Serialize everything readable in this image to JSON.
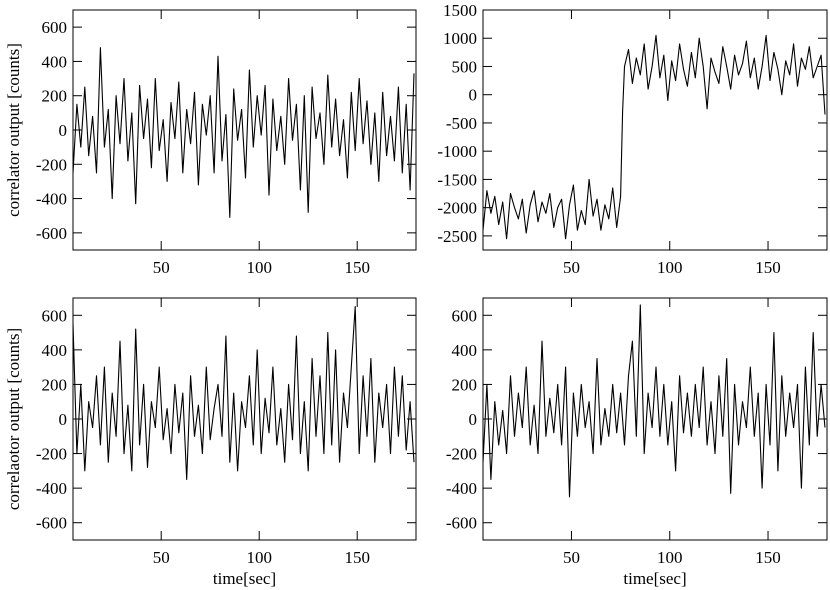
{
  "chart_data": [
    {
      "id": "top-left",
      "type": "line",
      "title": "",
      "xlabel": "",
      "ylabel": "correlator output [counts]",
      "xlim": [
        5,
        180
      ],
      "ylim": [
        -700,
        700
      ],
      "xticks": [
        50,
        100,
        150
      ],
      "yticks": [
        -600,
        -400,
        -200,
        0,
        200,
        400,
        600
      ],
      "grid": false,
      "series": [
        {
          "x": [
            5,
            7,
            9,
            11,
            13,
            15,
            17,
            19,
            21,
            23,
            25,
            27,
            29,
            31,
            33,
            35,
            37,
            39,
            41,
            43,
            45,
            47,
            49,
            51,
            53,
            55,
            57,
            59,
            61,
            63,
            65,
            67,
            69,
            71,
            73,
            75,
            77,
            79,
            81,
            83,
            85,
            87,
            89,
            91,
            93,
            95,
            97,
            99,
            101,
            103,
            105,
            107,
            109,
            111,
            113,
            115,
            117,
            119,
            121,
            123,
            125,
            127,
            129,
            131,
            133,
            135,
            137,
            139,
            141,
            143,
            145,
            147,
            149,
            151,
            153,
            155,
            157,
            159,
            161,
            163,
            165,
            167,
            169,
            171,
            173,
            175,
            177,
            179
          ],
          "values": [
            -250,
            150,
            -100,
            250,
            -150,
            80,
            -250,
            480,
            -100,
            120,
            -400,
            200,
            -80,
            300,
            -180,
            100,
            -430,
            260,
            -50,
            180,
            -220,
            300,
            -120,
            60,
            -300,
            160,
            -50,
            280,
            -250,
            120,
            -80,
            220,
            -320,
            150,
            -30,
            200,
            -250,
            430,
            -180,
            90,
            -510,
            240,
            -60,
            120,
            -280,
            350,
            -100,
            200,
            -30,
            260,
            -380,
            180,
            -120,
            80,
            -200,
            300,
            -60,
            150,
            -350,
            200,
            -480,
            250,
            -50,
            100,
            -200,
            320,
            -100,
            180,
            -150,
            60,
            -280,
            220,
            -120,
            300,
            -80,
            170,
            -200,
            100,
            -300,
            220,
            -150,
            80,
            -180,
            250,
            -250,
            150,
            -350,
            330
          ]
        }
      ]
    },
    {
      "id": "top-right",
      "type": "line",
      "title": "",
      "xlabel": "",
      "ylabel": "",
      "xlim": [
        5,
        180
      ],
      "ylim": [
        -2750,
        1500
      ],
      "xticks": [
        50,
        100,
        150
      ],
      "yticks": [
        -2500,
        -2000,
        -1500,
        -1000,
        -500,
        0,
        500,
        1000,
        1500
      ],
      "grid": false,
      "series": [
        {
          "x": [
            5,
            7,
            9,
            11,
            13,
            15,
            17,
            19,
            21,
            23,
            25,
            27,
            29,
            31,
            33,
            35,
            37,
            39,
            41,
            43,
            45,
            47,
            49,
            51,
            53,
            55,
            57,
            59,
            61,
            63,
            65,
            67,
            69,
            71,
            73,
            75,
            76,
            77,
            79,
            81,
            83,
            85,
            87,
            89,
            91,
            93,
            95,
            97,
            99,
            101,
            103,
            105,
            107,
            109,
            111,
            113,
            115,
            117,
            119,
            121,
            123,
            125,
            127,
            129,
            131,
            133,
            135,
            137,
            139,
            141,
            143,
            145,
            147,
            149,
            151,
            153,
            155,
            157,
            159,
            161,
            163,
            165,
            167,
            169,
            171,
            173,
            175,
            177,
            179
          ],
          "values": [
            -2400,
            -1700,
            -2100,
            -1800,
            -2300,
            -1900,
            -2550,
            -1750,
            -2000,
            -2200,
            -1850,
            -2450,
            -1950,
            -1700,
            -2250,
            -1900,
            -2100,
            -1750,
            -2350,
            -2000,
            -1850,
            -2550,
            -1950,
            -1600,
            -2400,
            -2050,
            -2300,
            -1500,
            -2150,
            -1850,
            -2400,
            -1950,
            -2200,
            -1650,
            -2350,
            -1800,
            -300,
            500,
            800,
            200,
            650,
            350,
            900,
            100,
            500,
            1050,
            300,
            700,
            -100,
            600,
            250,
            900,
            450,
            150,
            750,
            300,
            1000,
            500,
            -250,
            650,
            400,
            200,
            850,
            500,
            100,
            700,
            350,
            550,
            950,
            300,
            650,
            100,
            500,
            1050,
            250,
            750,
            450,
            0,
            600,
            350,
            900,
            150,
            650,
            450,
            850,
            300,
            500,
            700,
            -350
          ]
        }
      ]
    },
    {
      "id": "bottom-left",
      "type": "line",
      "title": "",
      "xlabel": "time[sec]",
      "ylabel": "correlaotor output [counts]",
      "xlim": [
        5,
        180
      ],
      "ylim": [
        -700,
        700
      ],
      "xticks": [
        50,
        100,
        150
      ],
      "yticks": [
        -600,
        -400,
        -200,
        0,
        200,
        400,
        600
      ],
      "grid": false,
      "series": [
        {
          "x": [
            5,
            7,
            9,
            11,
            13,
            15,
            17,
            19,
            21,
            23,
            25,
            27,
            29,
            31,
            33,
            35,
            37,
            39,
            41,
            43,
            45,
            47,
            49,
            51,
            53,
            55,
            57,
            59,
            61,
            63,
            65,
            67,
            69,
            71,
            73,
            75,
            77,
            79,
            81,
            83,
            85,
            87,
            89,
            91,
            93,
            95,
            97,
            99,
            101,
            103,
            105,
            107,
            109,
            111,
            113,
            115,
            117,
            119,
            121,
            123,
            125,
            127,
            129,
            131,
            133,
            135,
            137,
            139,
            141,
            143,
            145,
            147,
            149,
            151,
            153,
            155,
            157,
            159,
            161,
            163,
            165,
            167,
            169,
            171,
            173,
            175,
            177,
            179
          ],
          "values": [
            550,
            -200,
            200,
            -300,
            100,
            -50,
            250,
            -150,
            300,
            -250,
            150,
            -100,
            450,
            -200,
            80,
            -300,
            520,
            -150,
            200,
            -280,
            100,
            -50,
            300,
            -120,
            60,
            -200,
            200,
            -80,
            150,
            -350,
            250,
            -100,
            80,
            -200,
            300,
            -120,
            60,
            200,
            -100,
            480,
            -250,
            150,
            -300,
            100,
            -50,
            250,
            -150,
            400,
            -200,
            120,
            -80,
            300,
            -150,
            60,
            -250,
            200,
            -120,
            480,
            -200,
            100,
            -300,
            350,
            -100,
            250,
            -200,
            500,
            -150,
            400,
            -250,
            150,
            -50,
            300,
            650,
            -200,
            250,
            -100,
            350,
            -250,
            150,
            -50,
            200,
            -200,
            300,
            -100,
            250,
            -180,
            100,
            -250
          ]
        }
      ]
    },
    {
      "id": "bottom-right",
      "type": "line",
      "title": "",
      "xlabel": "time[sec]",
      "ylabel": "",
      "xlim": [
        5,
        180
      ],
      "ylim": [
        -700,
        700
      ],
      "xticks": [
        50,
        100,
        150
      ],
      "yticks": [
        -600,
        -400,
        -200,
        0,
        200,
        400,
        600
      ],
      "grid": false,
      "series": [
        {
          "x": [
            5,
            7,
            9,
            11,
            13,
            15,
            17,
            19,
            21,
            23,
            25,
            27,
            29,
            31,
            33,
            35,
            37,
            39,
            41,
            43,
            45,
            47,
            49,
            51,
            53,
            55,
            57,
            59,
            61,
            63,
            65,
            67,
            69,
            71,
            73,
            75,
            77,
            79,
            81,
            83,
            85,
            87,
            89,
            91,
            93,
            95,
            97,
            99,
            101,
            103,
            105,
            107,
            109,
            111,
            113,
            115,
            117,
            119,
            121,
            123,
            125,
            127,
            129,
            131,
            133,
            135,
            137,
            139,
            141,
            143,
            145,
            147,
            149,
            151,
            153,
            155,
            157,
            159,
            161,
            163,
            165,
            167,
            169,
            171,
            173,
            175,
            177,
            179
          ],
          "values": [
            -250,
            200,
            -350,
            100,
            -150,
            50,
            -200,
            250,
            -100,
            150,
            -50,
            300,
            -150,
            80,
            -200,
            450,
            -100,
            120,
            -80,
            200,
            -150,
            300,
            -450,
            150,
            -100,
            200,
            -50,
            100,
            -200,
            350,
            -150,
            60,
            -100,
            200,
            -80,
            150,
            -150,
            250,
            450,
            -100,
            660,
            -200,
            150,
            -50,
            300,
            -100,
            200,
            -150,
            100,
            -300,
            250,
            -80,
            150,
            -100,
            200,
            -50,
            300,
            -150,
            100,
            -200,
            250,
            -100,
            350,
            -430,
            200,
            -150,
            100,
            -50,
            300,
            -100,
            150,
            -400,
            200,
            -150,
            500,
            -300,
            250,
            -100,
            150,
            -50,
            200,
            -400,
            300,
            -150,
            500,
            -100,
            200,
            -50
          ]
        }
      ]
    }
  ]
}
